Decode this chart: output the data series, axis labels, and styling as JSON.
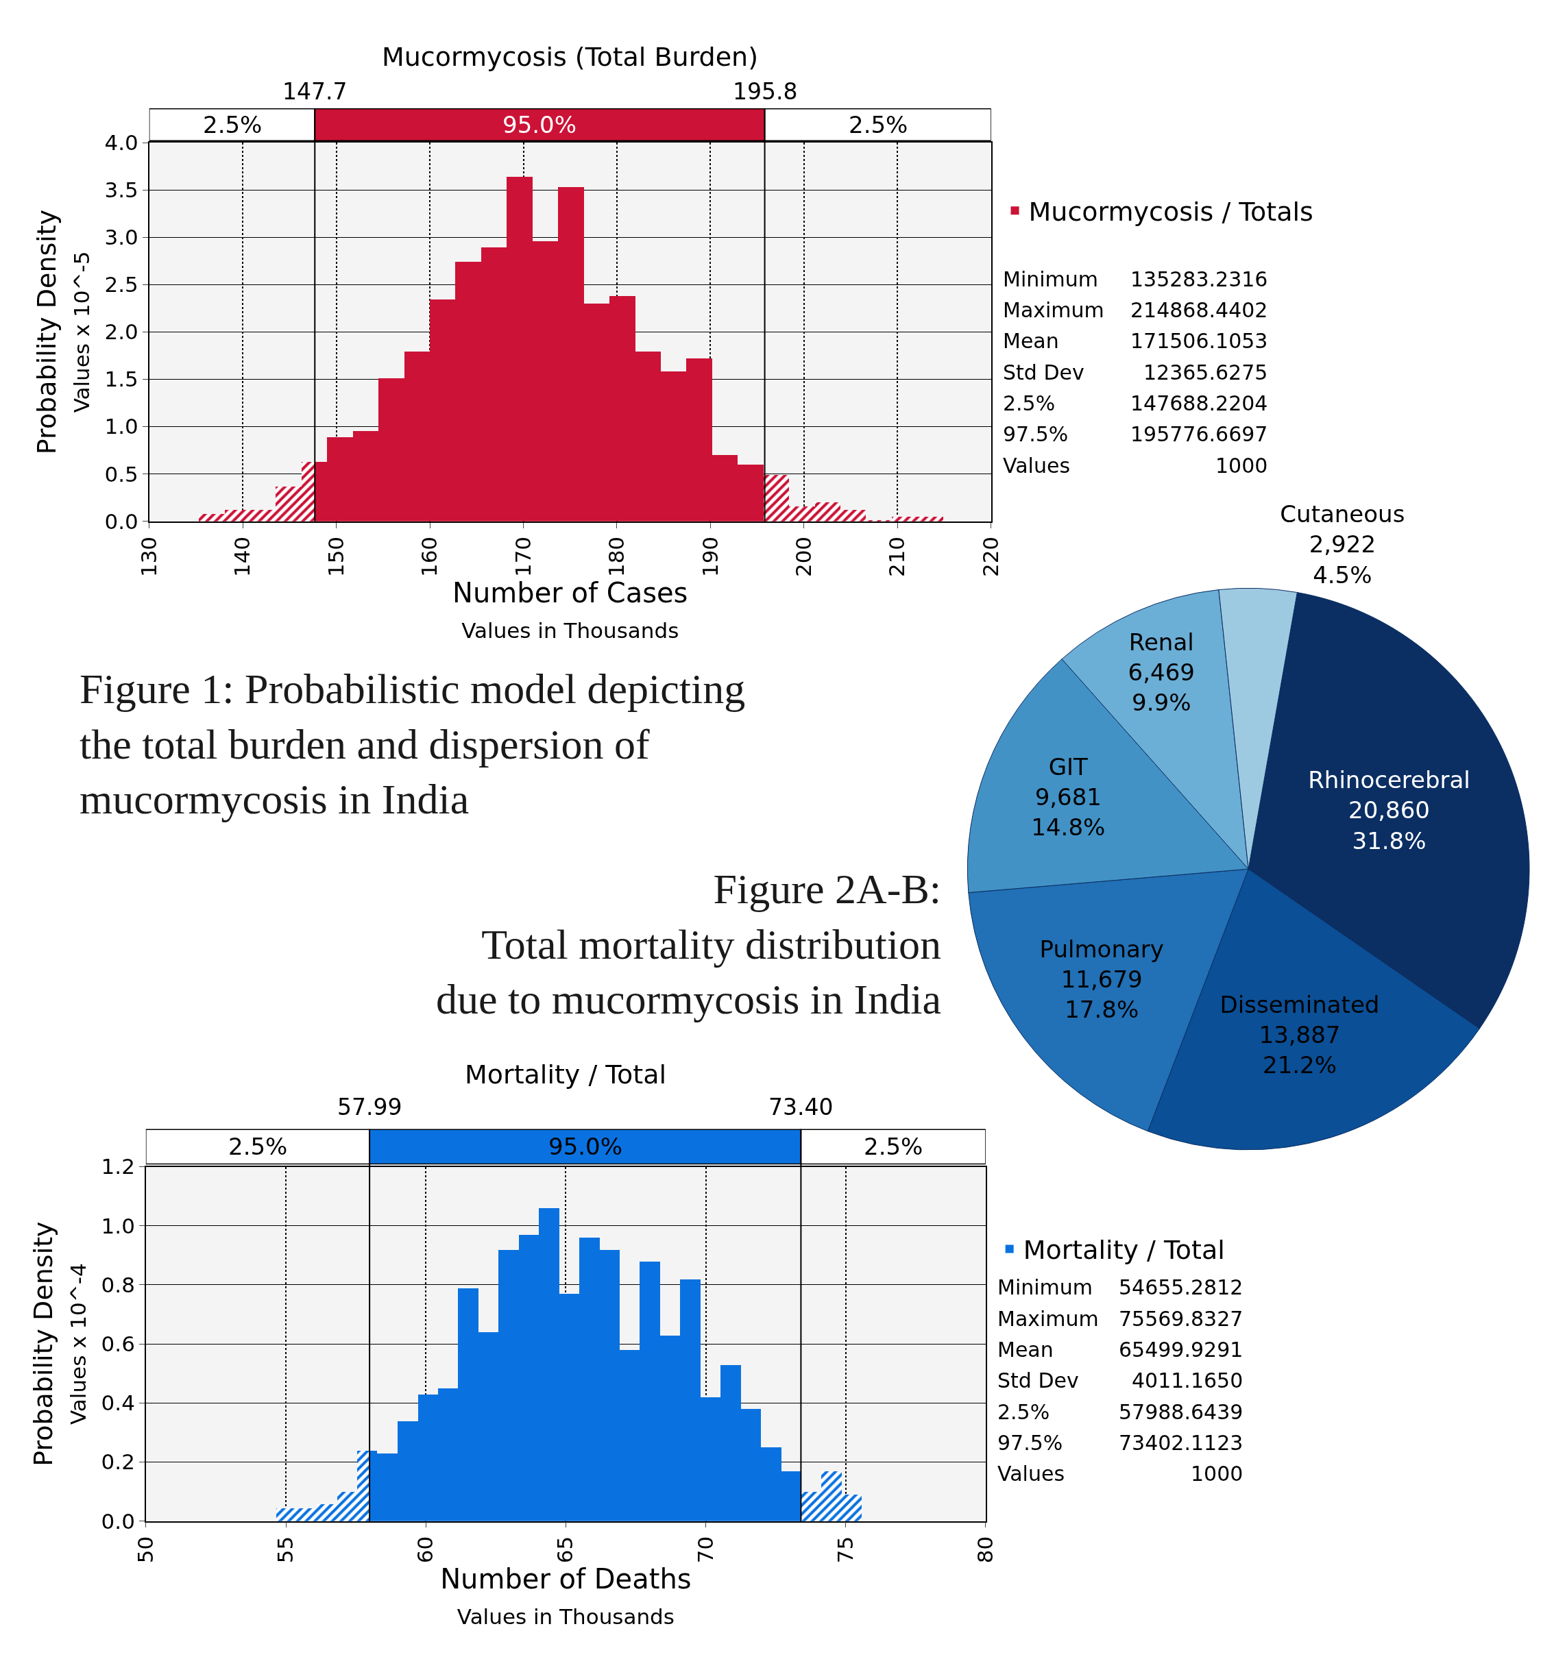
{
  "chart_data": [
    {
      "type": "histogram",
      "title": "Mucormycosis (Total Burden)",
      "xlabel": "Number of Cases\nValues in Thousands",
      "ylabel": "Probability Density\nValues x 10^-5",
      "bins": [
        135.28,
        138.03,
        140.77,
        143.51,
        146.26,
        147.7,
        149.0,
        151.75,
        154.49,
        157.23,
        159.98,
        162.72,
        165.47,
        168.21,
        170.95,
        173.7,
        176.44,
        179.19,
        181.93,
        184.67,
        187.42,
        190.16,
        192.91,
        195.65,
        198.39,
        201.14,
        203.88,
        206.62,
        209.37,
        212.11,
        214.86
      ],
      "series": [
        {
          "name": "Mucormycosis / Totals",
          "color": "#cc1236",
          "values": [
            0.08,
            0.12,
            0.12,
            0.37,
            0.63,
            0.63,
            0.89,
            0.95,
            1.51,
            1.79,
            2.34,
            2.74,
            2.89,
            3.64,
            2.96,
            3.53,
            2.3,
            2.38,
            1.79,
            1.58,
            1.72,
            0.7,
            0.6,
            0.49,
            0.16,
            0.2,
            0.12,
            0.01,
            0.05,
            0.05
          ]
        }
      ],
      "xlim": [
        130,
        220
      ],
      "xticks": [
        130,
        140,
        150,
        160,
        170,
        180,
        190,
        200,
        210,
        220
      ],
      "ylim": [
        0,
        4
      ],
      "yticks": [
        {
          "value": 0,
          "label": "0.0"
        },
        0.5,
        {
          "value": 1,
          "label": "1.0"
        },
        1.5,
        {
          "value": 2,
          "label": "2.0"
        },
        2.5,
        {
          "value": 3,
          "label": "3.0"
        },
        3.5,
        {
          "value": 4,
          "label": "4.0"
        }
      ],
      "grid": true,
      "legend": "right",
      "ref_lines": [
        {
          "axis": "x",
          "value": 147.7,
          "label": "147.7"
        },
        {
          "axis": "x",
          "value": 195.8,
          "label": "195.8"
        }
      ],
      "annotations": [
        "Figure 1: Probabilistic model depicting\nthe total burden and dispersion of\nmucormycosis in India",
        "2.5%",
        "95.0%",
        "2.5%",
        "Minimum 135283.2316",
        "Maximum 214868.4402",
        "Mean 171506.1053",
        "Std Dev 12365.6275",
        "2.5% 147688.2204",
        "97.5% 195776.6697",
        "Values 1000"
      ]
    },
    {
      "type": "pie",
      "categories": [
        "Rhinocerebral",
        "Disseminated",
        "Pulmonary",
        "GIT",
        "Renal",
        "Cutaneous"
      ],
      "values": [
        20860,
        13887,
        11679,
        9681,
        6469,
        2922
      ],
      "colors": [
        "#0b2e63",
        "#0b4f96",
        "#2270b5",
        "#4292c6",
        "#6baed6",
        "#9ecae1"
      ],
      "value_labels": [
        "20,860\n31.8%",
        "13,887\n21.2%",
        "11,679\n17.8%",
        "9,681\n14.8%",
        "6,469\n9.9%",
        "2,922\n4.5%"
      ]
    },
    {
      "type": "histogram",
      "title": "Mortality / Total",
      "xlabel": "Number of Deaths\nValues in Thousands",
      "ylabel": "Probability Density\nValues x 10^-4",
      "bins": [
        54.66,
        55.38,
        56.1,
        56.82,
        57.54,
        57.99,
        58.26,
        58.99,
        59.71,
        60.43,
        61.15,
        61.87,
        62.59,
        63.31,
        64.03,
        64.76,
        65.48,
        66.2,
        66.92,
        67.64,
        68.36,
        69.08,
        69.8,
        70.52,
        71.25,
        71.97,
        72.69,
        73.41,
        74.13,
        74.85,
        75.57
      ],
      "series": [
        {
          "name": "Mortality / Total",
          "color": "#0a72e0",
          "values": [
            0.045,
            0.045,
            0.058,
            0.1,
            0.24,
            0.24,
            0.23,
            0.34,
            0.43,
            0.45,
            0.79,
            0.64,
            0.92,
            0.97,
            1.06,
            0.77,
            0.96,
            0.92,
            0.58,
            0.88,
            0.63,
            0.82,
            0.42,
            0.53,
            0.38,
            0.25,
            0.17,
            0.1,
            0.17,
            0.09
          ]
        }
      ],
      "xlim": [
        50,
        80
      ],
      "xticks": [
        50,
        55,
        60,
        65,
        70,
        75,
        80
      ],
      "ylim": [
        0,
        1.2
      ],
      "yticks": [
        {
          "value": 0,
          "label": "0.0"
        },
        0.2,
        0.4,
        0.6,
        0.8,
        {
          "value": 1,
          "label": "1.0"
        },
        1.2
      ],
      "grid": true,
      "legend": "right",
      "ref_lines": [
        {
          "axis": "x",
          "value": 57.99,
          "label": "57.99"
        },
        {
          "axis": "x",
          "value": 73.4,
          "label": "73.40"
        }
      ],
      "annotations": [
        "Figure 2A-B:\nTotal mortality distribution\ndue to mucormycosis in India",
        "2.5%",
        "95.0%",
        "2.5%",
        "Minimum 54655.2812",
        "Maximum 75569.8327",
        "Mean 65499.9291",
        "Std Dev 4011.1650",
        "2.5% 57988.6439",
        "97.5% 73402.1123",
        "Values 1000"
      ]
    }
  ]
}
